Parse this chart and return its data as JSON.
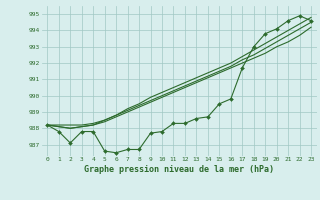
{
  "x": [
    0,
    1,
    2,
    3,
    4,
    5,
    6,
    7,
    8,
    9,
    10,
    11,
    12,
    13,
    14,
    15,
    16,
    17,
    18,
    19,
    20,
    21,
    22,
    23
  ],
  "line1": [
    988.2,
    987.8,
    987.1,
    987.8,
    987.8,
    986.6,
    986.5,
    986.7,
    986.7,
    987.7,
    987.8,
    988.3,
    988.3,
    988.6,
    988.7,
    989.5,
    989.8,
    991.7,
    993.0,
    993.8,
    994.1,
    994.6,
    994.9,
    994.6
  ],
  "line2": [
    988.2,
    988.1,
    988.0,
    988.1,
    988.2,
    988.4,
    988.7,
    989.0,
    989.3,
    989.6,
    989.9,
    990.2,
    990.5,
    990.8,
    991.1,
    991.4,
    991.7,
    992.0,
    992.3,
    992.6,
    993.0,
    993.3,
    993.7,
    994.2
  ],
  "line3": [
    988.2,
    988.1,
    988.0,
    988.1,
    988.2,
    988.5,
    988.8,
    989.1,
    989.4,
    989.7,
    990.0,
    990.3,
    990.6,
    990.9,
    991.2,
    991.5,
    991.8,
    992.2,
    992.5,
    992.9,
    993.3,
    993.7,
    994.1,
    994.5
  ],
  "line4": [
    988.2,
    988.2,
    988.2,
    988.2,
    988.3,
    988.5,
    988.8,
    989.2,
    989.5,
    989.9,
    990.2,
    990.5,
    990.8,
    991.1,
    991.4,
    991.7,
    992.0,
    992.4,
    992.8,
    993.2,
    993.6,
    994.0,
    994.4,
    994.8
  ],
  "ylim": [
    986.3,
    995.5
  ],
  "yticks": [
    987,
    988,
    989,
    990,
    991,
    992,
    993,
    994,
    995
  ],
  "bg_color": "#d8eeed",
  "grid_color": "#a0c8c4",
  "line_color": "#2d6b2d",
  "title": "Graphe pression niveau de la mer (hPa)"
}
